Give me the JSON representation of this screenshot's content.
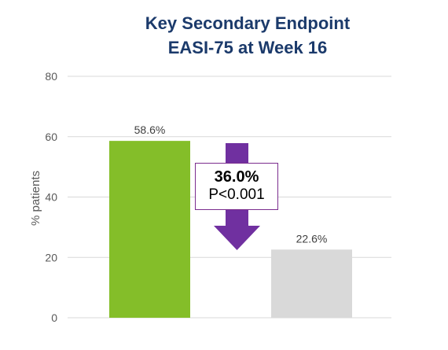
{
  "chart_data": {
    "type": "bar",
    "title_line1": "Key Secondary Endpoint",
    "title_line2": "EASI-75 at Week 16",
    "ylabel": "% patients",
    "xlabel": "",
    "ylim": [
      0,
      80
    ],
    "yticks": [
      0,
      20,
      40,
      60,
      80
    ],
    "grid": true,
    "series": [
      {
        "values": [
          58.6,
          22.6
        ],
        "labels": [
          "58.6%",
          "22.6%"
        ],
        "colors": [
          "#84be29",
          "#d9d9d9"
        ]
      }
    ],
    "annotation": {
      "difference": "36.0%",
      "p_value": "P<0.001",
      "arrow_color": "#7030a0"
    }
  }
}
